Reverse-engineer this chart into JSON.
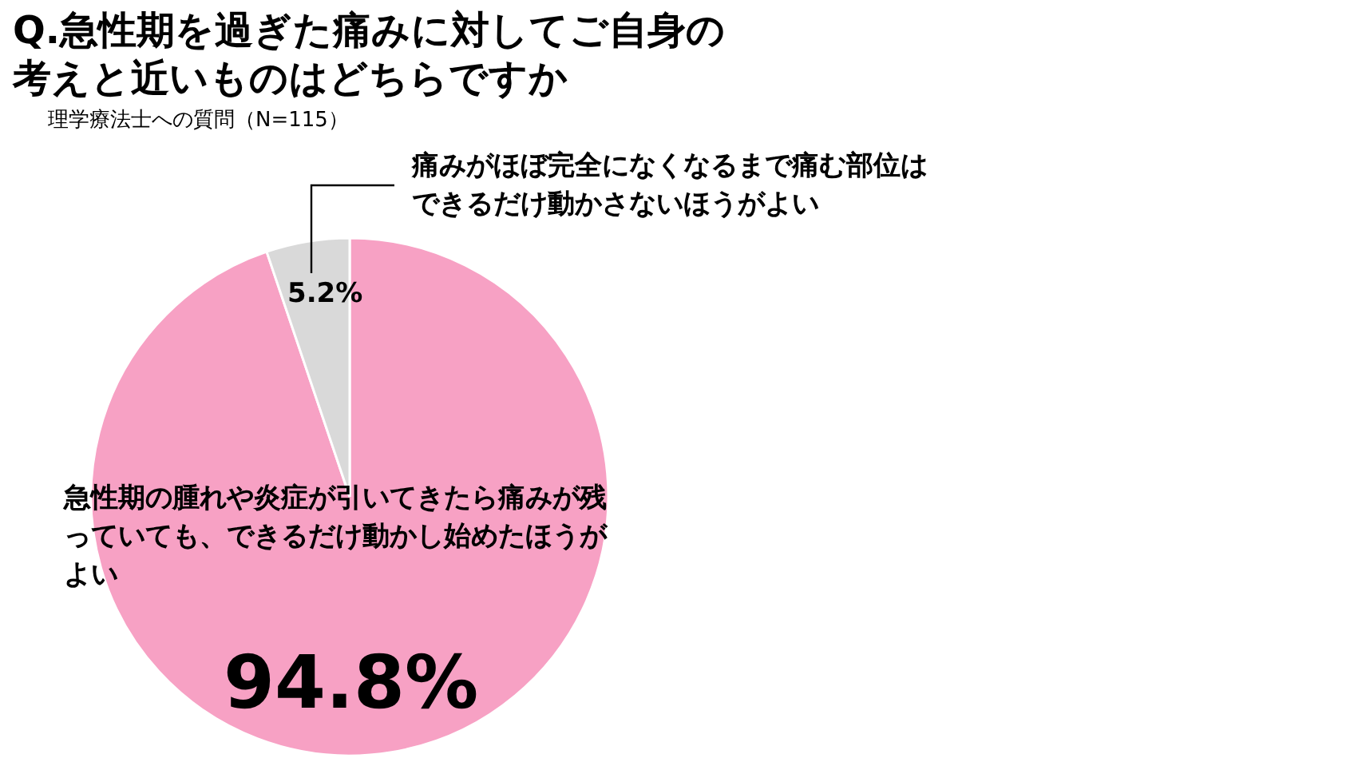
{
  "chart_data": {
    "type": "pie",
    "title": "Q.急性期を過ぎた痛みに対してご自身の考えと近いものはどちらですか",
    "subtitle": "理学療法士への質問（N=115）",
    "categories": [
      "急性期の腫れや炎症が引いてきたら痛みが残っていても、できるだけ動かし始めたほうがよい",
      "痛みがほぼ完全になくなるまで痛む部位はできるだけ動かさないほうがよい"
    ],
    "values": [
      94.8,
      5.2
    ],
    "colors": [
      "#f7a1c4",
      "#d9d9d9"
    ],
    "value_labels": [
      "94.8%",
      "5.2%"
    ],
    "legend": false
  }
}
